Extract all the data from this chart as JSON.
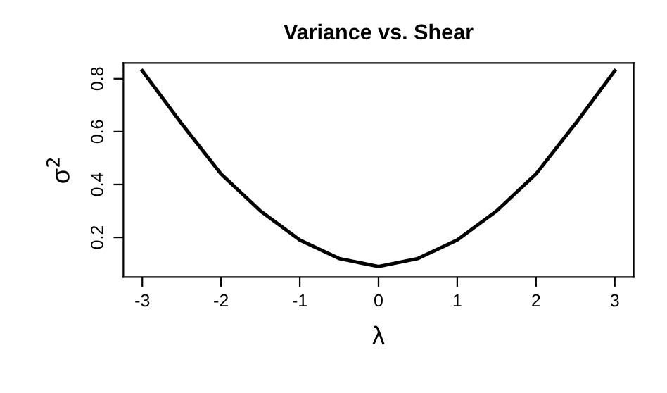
{
  "chart_data": {
    "type": "line",
    "title": "Variance vs. Shear",
    "xlabel": "λ",
    "ylabel": "σ$^{2}$",
    "x": [
      -3,
      -2.5,
      -2,
      -1.5,
      -1,
      -0.5,
      0,
      0.5,
      1,
      1.5,
      2,
      2.5,
      3
    ],
    "series": [
      {
        "color": "#000000",
        "values": [
          0.83,
          0.63,
          0.44,
          0.3,
          0.19,
          0.12,
          0.09,
          0.12,
          0.19,
          0.3,
          0.44,
          0.63,
          0.83
        ]
      }
    ],
    "xlim": [
      -3.24,
      3.24
    ],
    "ylim": [
      0.05,
      0.86
    ],
    "xticks": [
      -3,
      -2,
      -1,
      0,
      1,
      2,
      3
    ],
    "yticks": [
      0.2,
      0.4,
      0.6,
      0.8
    ],
    "grid": false,
    "legend": false,
    "marker": "none",
    "line_style": "solid"
  }
}
